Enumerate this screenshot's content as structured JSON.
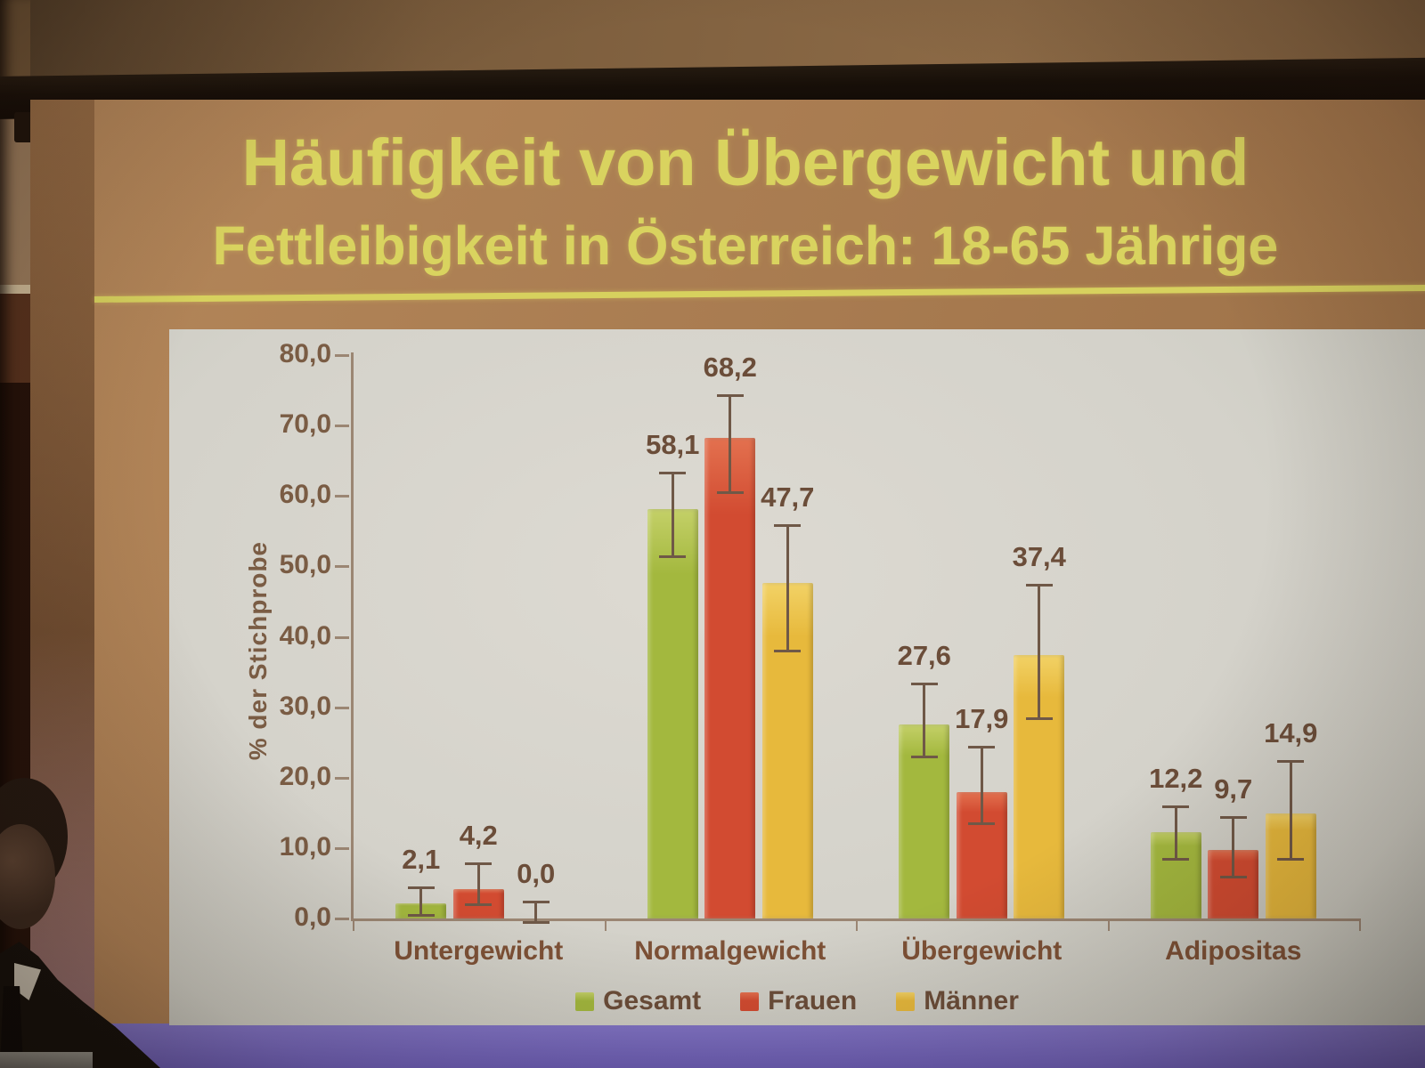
{
  "photo": {
    "slide_title_line1": "Häufigkeit von Übergewicht und",
    "slide_title_line2": "Fettleibigkeit in Österreich: 18-65 Jährige"
  },
  "chart_data": {
    "type": "bar",
    "title": "Häufigkeit von Übergewicht und Fettleibigkeit in Österreich: 18-65 Jährige",
    "ylabel": "% der Stichprobe",
    "xlabel": "",
    "ylim": [
      0,
      80
    ],
    "grid": false,
    "legend_position": "bottom",
    "yticks": [
      {
        "value": 0,
        "label": "0,0"
      },
      {
        "value": 10,
        "label": "10,0"
      },
      {
        "value": 20,
        "label": "20,0"
      },
      {
        "value": 30,
        "label": "30,0"
      },
      {
        "value": 40,
        "label": "40,0"
      },
      {
        "value": 50,
        "label": "50,0"
      },
      {
        "value": 60,
        "label": "60,0"
      },
      {
        "value": 70,
        "label": "70,0"
      },
      {
        "value": 80,
        "label": "80,0"
      }
    ],
    "categories": [
      "Untergewicht",
      "Normalgewicht",
      "Übergewicht",
      "Adipositas"
    ],
    "series": [
      {
        "name": "Gesamt",
        "color": "#a3b83e",
        "color_light": "#c4d068",
        "values": [
          2.1,
          58.1,
          27.6,
          12.2
        ],
        "value_labels": [
          "2,1",
          "58,1",
          "27,6",
          "12,2"
        ],
        "error_ranges": [
          [
            1.0,
            4.5
          ],
          [
            52.0,
            63.5
          ],
          [
            23.5,
            33.5
          ],
          [
            9.0,
            16.0
          ]
        ]
      },
      {
        "name": "Frauen",
        "color": "#d24b31",
        "color_light": "#e3714f",
        "values": [
          4.2,
          68.2,
          17.9,
          9.7
        ],
        "value_labels": [
          "4,2",
          "68,2",
          "17,9",
          "9,7"
        ],
        "error_ranges": [
          [
            2.5,
            8.0
          ],
          [
            61.0,
            74.5
          ],
          [
            14.0,
            24.5
          ],
          [
            6.5,
            14.5
          ]
        ]
      },
      {
        "name": "Männer",
        "color": "#e7b93c",
        "color_light": "#f2d266",
        "values": [
          0.0,
          47.7,
          37.4,
          14.9
        ],
        "value_labels": [
          "0,0",
          "47,7",
          "37,4",
          "14,9"
        ],
        "error_ranges": [
          [
            0.0,
            2.5
          ],
          [
            38.5,
            56.0
          ],
          [
            29.0,
            47.5
          ],
          [
            9.0,
            22.5
          ]
        ]
      }
    ],
    "legend": [
      "Gesamt",
      "Frauen",
      "Männer"
    ]
  }
}
